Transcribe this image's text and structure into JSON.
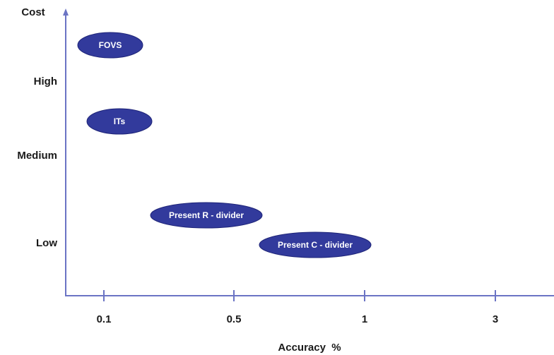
{
  "chart_data": {
    "type": "scatter",
    "title": "",
    "xlabel": "Accuracy  %",
    "ylabel": "Cost",
    "x_categories": [
      "0.1",
      "0.5",
      "1",
      "3"
    ],
    "y_categories": [
      "Low",
      "Medium",
      "High"
    ],
    "grid": false,
    "points": [
      {
        "label": "FOVS",
        "x": 0.1,
        "y": "High"
      },
      {
        "label": "ITs",
        "x": 0.1,
        "y": "High-Medium"
      },
      {
        "label": "Present R - divider",
        "x": 0.5,
        "y": "Low-Medium"
      },
      {
        "label": "Present C - divider",
        "x": 1,
        "y": "Low"
      }
    ],
    "colors": {
      "axis": "#6b74c4",
      "marker_fill": "#323a9c",
      "marker_stroke": "#1e2478",
      "marker_text": "#ffffff"
    }
  }
}
